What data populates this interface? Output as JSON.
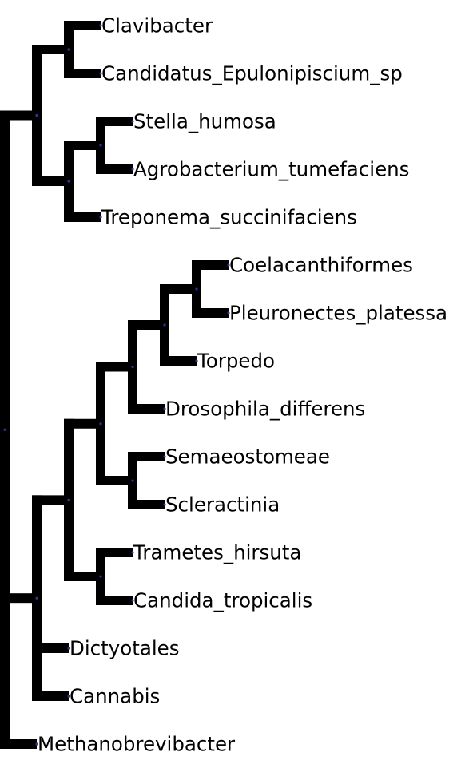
{
  "tree": {
    "line_color": "#000000",
    "node_color": "#2b3a8c",
    "root": {
      "children": [
        {
          "children": [
            {
              "children": [
                {
                  "label": "Clavibacter"
                },
                {
                  "label": "Candidatus_Epulonipiscium_sp"
                }
              ]
            },
            {
              "children": [
                {
                  "children": [
                    {
                      "label": "Stella_humosa"
                    },
                    {
                      "label": "Agrobacterium_tumefaciens"
                    }
                  ]
                },
                {
                  "label": "Treponema_succinifaciens"
                }
              ]
            }
          ]
        },
        {
          "children": [
            {
              "children": [
                {
                  "children": [
                    {
                      "children": [
                        {
                          "children": [
                            {
                              "children": [
                                {
                                  "label": "Coelacanthiformes"
                                },
                                {
                                  "label": "Pleuronectes_platessa"
                                }
                              ]
                            },
                            {
                              "label": "Torpedo"
                            }
                          ]
                        },
                        {
                          "label": "Drosophila_differens"
                        }
                      ]
                    },
                    {
                      "children": [
                        {
                          "label": "Semaeostomeae"
                        },
                        {
                          "label": "Scleractinia"
                        }
                      ]
                    }
                  ]
                },
                {
                  "children": [
                    {
                      "label": "Trametes_hirsuta"
                    },
                    {
                      "label": "Candida_tropicalis"
                    }
                  ]
                }
              ]
            },
            {
              "label": "Dictyotales"
            },
            {
              "label": "Cannabis"
            }
          ]
        },
        {
          "label": "Methanobrevibacter"
        }
      ]
    }
  }
}
